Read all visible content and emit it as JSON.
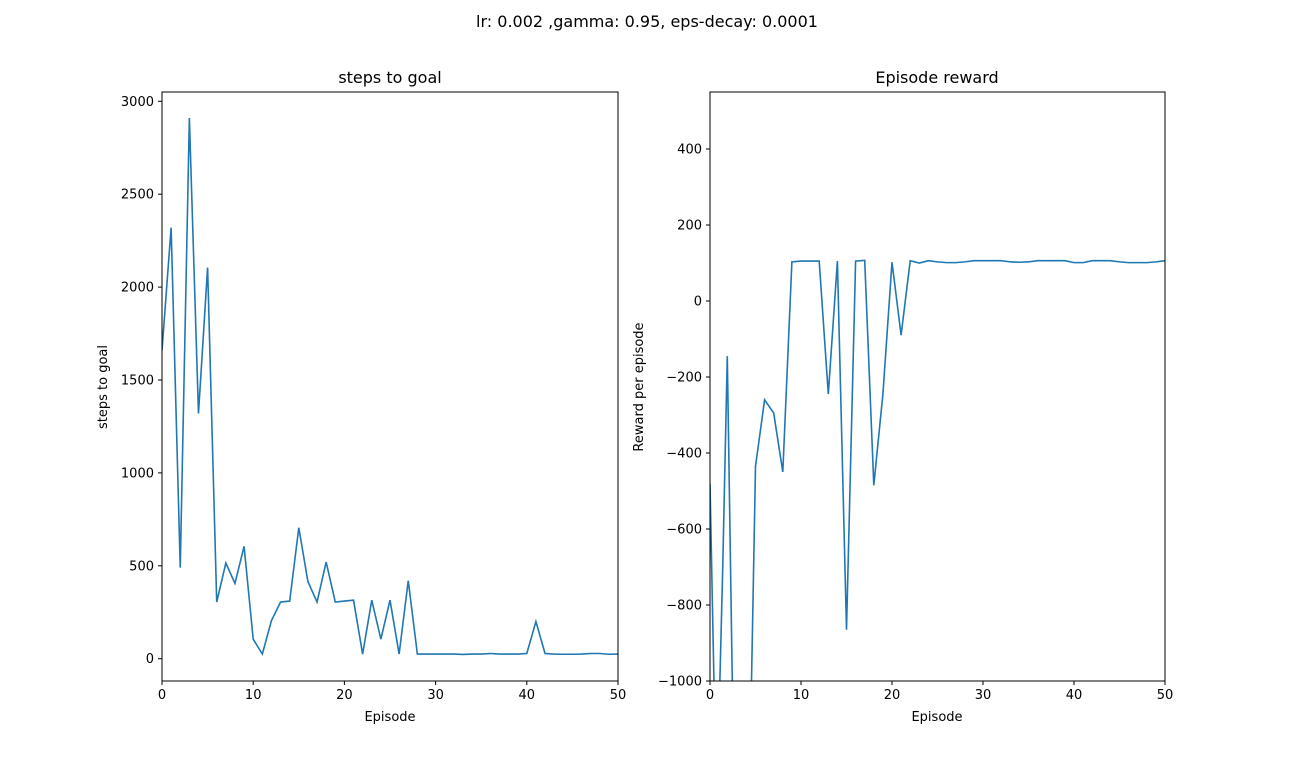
{
  "figure": {
    "suptitle": "lr: 0.002 ,gamma: 0.95, eps-decay: 0.0001"
  },
  "chart_data": [
    {
      "type": "line",
      "title": "steps to goal",
      "xlabel": "Episode",
      "ylabel": "steps to goal",
      "xlim": [
        0,
        50
      ],
      "ylim": [
        -120,
        3050
      ],
      "xticks": [
        0,
        10,
        20,
        30,
        40,
        50
      ],
      "yticks": [
        0,
        500,
        1000,
        1500,
        2000,
        2500,
        3000
      ],
      "grid": false,
      "color": "#1f77b4",
      "x": [
        0,
        1,
        2,
        3,
        4,
        5,
        6,
        7,
        8,
        9,
        10,
        11,
        12,
        13,
        14,
        15,
        16,
        17,
        18,
        19,
        20,
        21,
        22,
        23,
        24,
        25,
        26,
        27,
        28,
        29,
        30,
        31,
        32,
        33,
        34,
        35,
        36,
        37,
        38,
        39,
        40,
        41,
        42,
        43,
        44,
        45,
        46,
        47,
        48,
        49,
        50
      ],
      "y": [
        1660,
        2320,
        490,
        2910,
        1320,
        2105,
        305,
        515,
        405,
        605,
        105,
        25,
        205,
        305,
        310,
        705,
        415,
        305,
        520,
        305,
        310,
        315,
        25,
        315,
        105,
        315,
        25,
        420,
        25,
        25,
        25,
        25,
        25,
        23,
        25,
        25,
        28,
        25,
        25,
        25,
        28,
        200,
        28,
        25,
        24,
        24,
        25,
        28,
        28,
        24,
        25
      ]
    },
    {
      "type": "line",
      "title": "Episode reward",
      "xlabel": "Episode",
      "ylabel": "Reward per episode",
      "xlim": [
        0,
        50
      ],
      "ylim": [
        -1000,
        550
      ],
      "xticks": [
        0,
        10,
        20,
        30,
        40,
        50
      ],
      "yticks": [
        -1000,
        -800,
        -600,
        -400,
        -200,
        0,
        200,
        400
      ],
      "grid": false,
      "color": "#1f77b4",
      "x": [
        0,
        0.5,
        1,
        1.4,
        1.9,
        2.5,
        3,
        4.5,
        5,
        6,
        7,
        8,
        9,
        10,
        11,
        12,
        13,
        14,
        15,
        16,
        17,
        18,
        19,
        20,
        21,
        22,
        23,
        24,
        25,
        26,
        27,
        28,
        29,
        30,
        31,
        32,
        33,
        34,
        35,
        36,
        37,
        38,
        39,
        40,
        41,
        42,
        43,
        44,
        45,
        46,
        47,
        48,
        49,
        50
      ],
      "y": [
        -480,
        -1080,
        -1080,
        -700,
        -145,
        -1080,
        -1080,
        -1080,
        -435,
        -260,
        -295,
        -450,
        103,
        105,
        105,
        105,
        -245,
        105,
        -865,
        105,
        107,
        -485,
        -245,
        102,
        -90,
        106,
        100,
        106,
        103,
        101,
        101,
        103,
        106,
        106,
        106,
        106,
        103,
        102,
        103,
        106,
        106,
        106,
        106,
        101,
        101,
        106,
        106,
        106,
        103,
        101,
        101,
        101,
        103,
        106
      ]
    }
  ]
}
